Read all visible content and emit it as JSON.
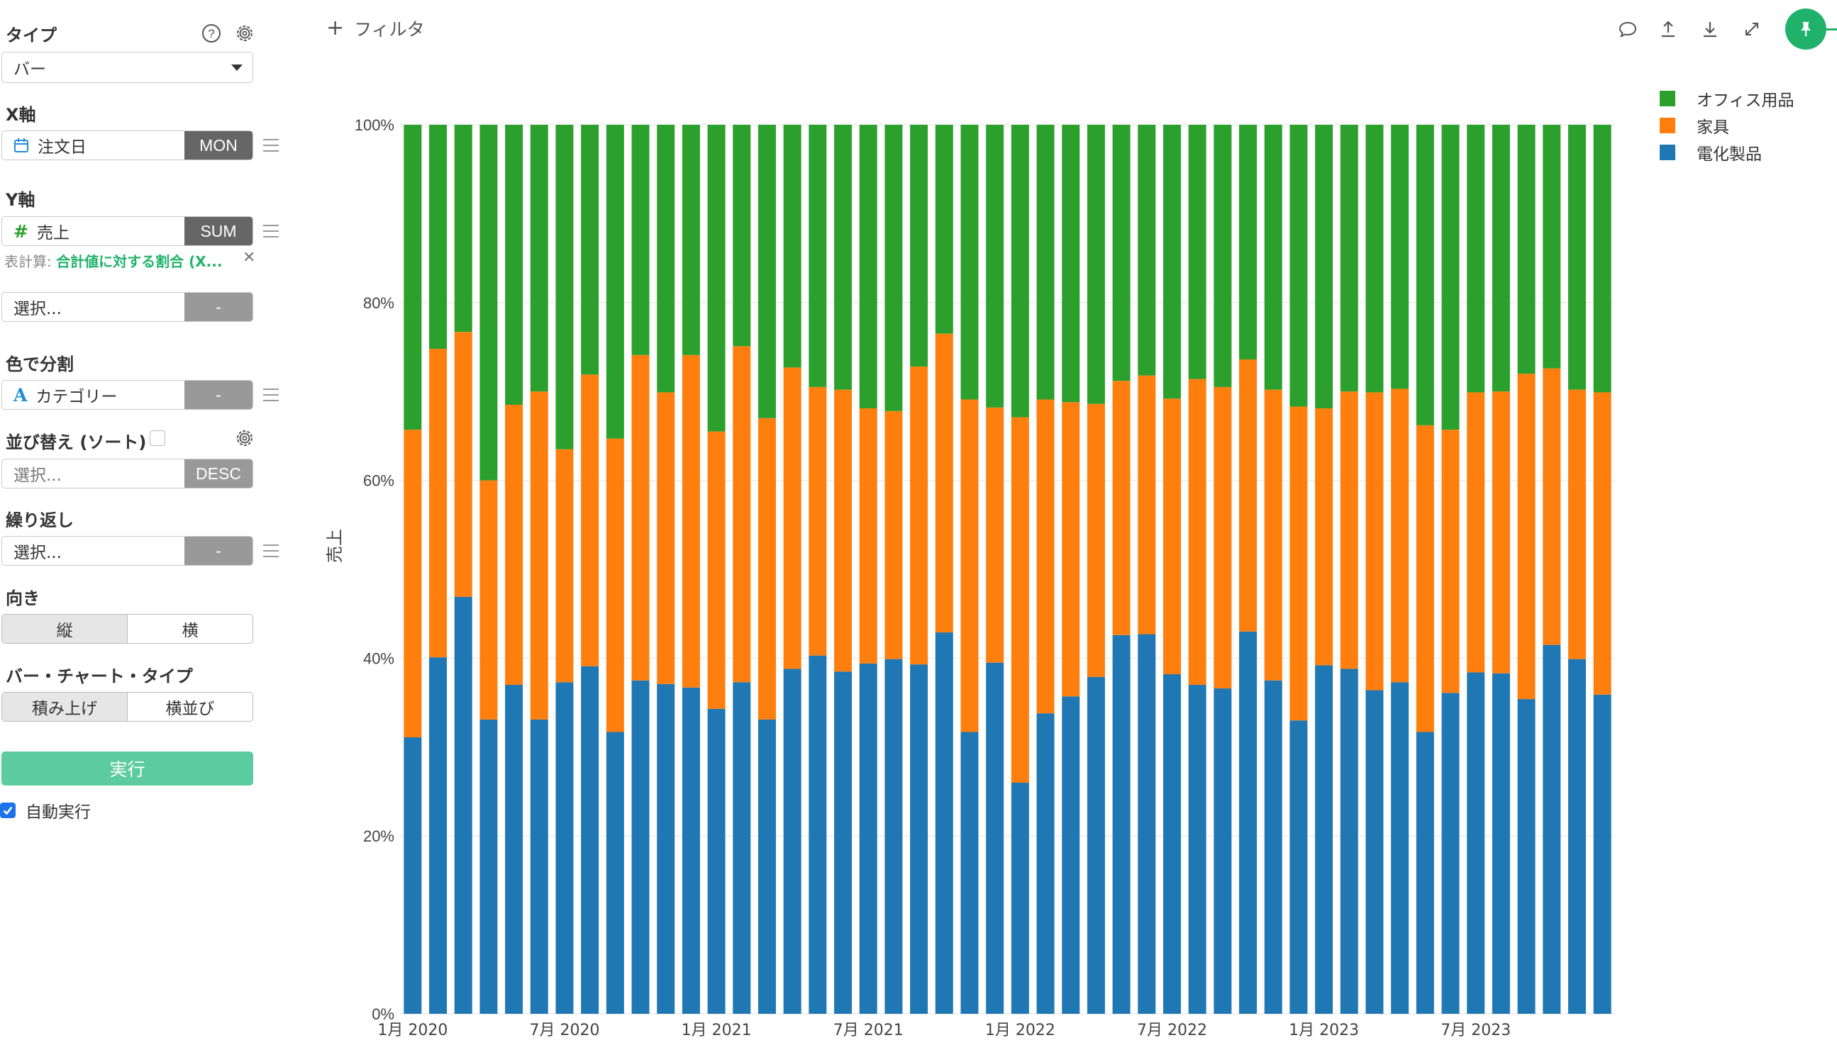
{
  "panel": {
    "type_label": "タイプ",
    "type_value": "バー",
    "x_axis_label": "X軸",
    "x_field": "注文日",
    "x_agg": "MON",
    "y_axis_label": "Y軸",
    "y_field": "売上",
    "y_agg": "SUM",
    "table_calc_prefix": "表計算: ",
    "table_calc_value": "合計値に対する割合 (X...",
    "y2_placeholder": "選択...",
    "y2_agg": "-",
    "color_label": "色で分割",
    "color_field": "カテゴリー",
    "color_agg": "-",
    "sort_label": "並び替え (ソート)",
    "sort_placeholder": "選択...",
    "sort_order": "DESC",
    "repeat_label": "繰り返し",
    "repeat_placeholder": "選択...",
    "repeat_agg": "-",
    "orientation_label": "向き",
    "orientation_options": [
      "縦",
      "横"
    ],
    "bar_type_label": "バー・チャート・タイプ",
    "bar_type_options": [
      "積み上げ",
      "横並び"
    ],
    "run_label": "実行",
    "auto_run_label": "自動実行",
    "auto_run_checked": true
  },
  "toolbar": {
    "filter_label": "フィルタ",
    "icons": [
      "comment-icon",
      "upload-icon",
      "download-icon",
      "expand-icon",
      "pin-icon"
    ]
  },
  "colors": {
    "office": "#2ca02c",
    "furniture": "#ff7f0e",
    "electronics": "#1f77b4",
    "accent": "#20b26b",
    "run": "#5ccb9f"
  },
  "chart_data": {
    "type": "bar",
    "stacked": true,
    "ylabel": "売上",
    "ylim": [
      0,
      100
    ],
    "yticks": [
      "0%",
      "20%",
      "40%",
      "60%",
      "80%",
      "100%"
    ],
    "xticks": [
      {
        "index": 0,
        "label": "1月 2020"
      },
      {
        "index": 6,
        "label": "7月 2020"
      },
      {
        "index": 12,
        "label": "1月 2021"
      },
      {
        "index": 18,
        "label": "7月 2021"
      },
      {
        "index": 24,
        "label": "1月 2022"
      },
      {
        "index": 30,
        "label": "7月 2022"
      },
      {
        "index": 36,
        "label": "1月 2023"
      },
      {
        "index": 42,
        "label": "7月 2023"
      }
    ],
    "categories": [
      "2020-01",
      "2020-02",
      "2020-03",
      "2020-04",
      "2020-05",
      "2020-06",
      "2020-07",
      "2020-08",
      "2020-09",
      "2020-10",
      "2020-11",
      "2020-12",
      "2021-01",
      "2021-02",
      "2021-03",
      "2021-04",
      "2021-05",
      "2021-06",
      "2021-07",
      "2021-08",
      "2021-09",
      "2021-10",
      "2021-11",
      "2021-12",
      "2022-01",
      "2022-02",
      "2022-03",
      "2022-04",
      "2022-05",
      "2022-06",
      "2022-07",
      "2022-08",
      "2022-09",
      "2022-10",
      "2022-11",
      "2022-12",
      "2023-01",
      "2023-02",
      "2023-03",
      "2023-04",
      "2023-05",
      "2023-06",
      "2023-07",
      "2023-08",
      "2023-09",
      "2023-10",
      "2023-11",
      "2023-12"
    ],
    "legend_position": "top-right",
    "series": [
      {
        "name": "電化製品",
        "color": "#1f77b4",
        "values": [
          31.1,
          40.1,
          46.9,
          33.1,
          37,
          33.1,
          37.3,
          39.1,
          31.7,
          37.5,
          37.1,
          36.7,
          34.3,
          37.3,
          33.1,
          38.8,
          40.3,
          38.5,
          39.4,
          39.9,
          39.3,
          42.9,
          31.7,
          39.5,
          26,
          33.8,
          35.7,
          37.9,
          42.6,
          42.7,
          38.2,
          37,
          36.6,
          43,
          37.5,
          33,
          39.2,
          38.8,
          36.4,
          37.3,
          31.7,
          36.1,
          38.4,
          38.3,
          35.4,
          41.5,
          39.9,
          35.9
        ]
      },
      {
        "name": "家具",
        "color": "#ff7f0e",
        "values": [
          34.6,
          34.7,
          29.8,
          26.9,
          31.5,
          36.9,
          26.2,
          32.8,
          33,
          36.6,
          32.8,
          37.4,
          31.2,
          37.8,
          33.9,
          33.9,
          30.2,
          31.7,
          28.7,
          27.9,
          33.5,
          33.6,
          37.4,
          28.7,
          41.1,
          35.3,
          33.1,
          30.7,
          28.6,
          29.1,
          31,
          34.4,
          33.9,
          30.6,
          32.7,
          35.3,
          28.9,
          31.2,
          33.5,
          33,
          34.5,
          29.6,
          31.5,
          31.7,
          36.6,
          31.1,
          30.3,
          34
        ]
      },
      {
        "name": "オフィス用品",
        "color": "#2ca02c",
        "values": [
          34.3,
          25.2,
          23.3,
          40,
          31.5,
          30,
          36.5,
          28.1,
          35.3,
          25.9,
          30.1,
          25.9,
          34.5,
          24.9,
          33,
          27.3,
          29.5,
          29.8,
          31.9,
          32.2,
          27.2,
          23.5,
          30.9,
          31.8,
          32.9,
          30.9,
          31.2,
          31.4,
          28.8,
          28.2,
          30.8,
          28.6,
          29.5,
          26.4,
          29.8,
          31.7,
          31.9,
          30,
          30.1,
          29.7,
          33.8,
          34.3,
          30.1,
          30,
          28,
          27.4,
          29.8,
          30.1
        ]
      }
    ]
  }
}
